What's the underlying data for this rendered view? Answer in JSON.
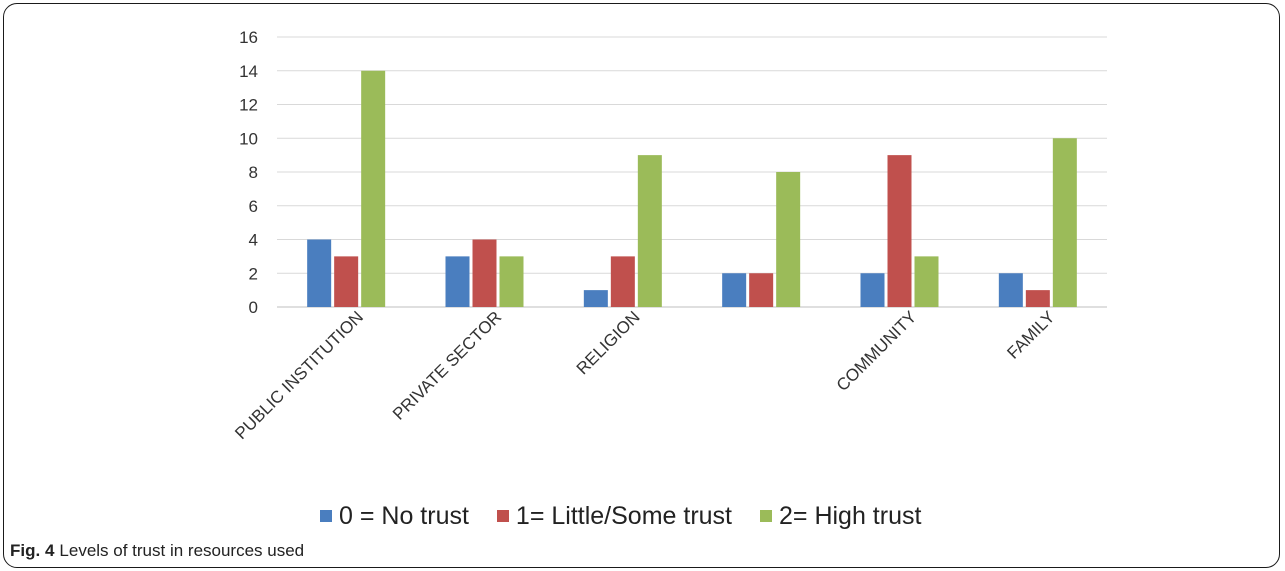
{
  "chart_data": {
    "type": "bar",
    "categories": [
      "PUBLIC INSTITUTION",
      "PRIVATE SECTOR",
      "RELIGION",
      "",
      "COMMUNITY",
      "FAMILY"
    ],
    "series": [
      {
        "name": "0 = No trust",
        "color": "#4a7ebf",
        "values": [
          4,
          3,
          1,
          2,
          2,
          2
        ]
      },
      {
        "name": "1= Little/Some trust",
        "color": "#c0504d",
        "values": [
          3,
          4,
          3,
          2,
          9,
          1
        ]
      },
      {
        "name": "2= High trust",
        "color": "#9bbb59",
        "values": [
          14,
          3,
          9,
          8,
          3,
          10
        ]
      }
    ],
    "yticks": [
      "0",
      "2",
      "4",
      "6",
      "8",
      "10",
      "12",
      "14",
      "16"
    ],
    "ylim": [
      0,
      16
    ],
    "grid": true,
    "legend": "bottom"
  },
  "caption": {
    "label": "Fig. 4",
    "text": "Levels of trust in resources used"
  }
}
